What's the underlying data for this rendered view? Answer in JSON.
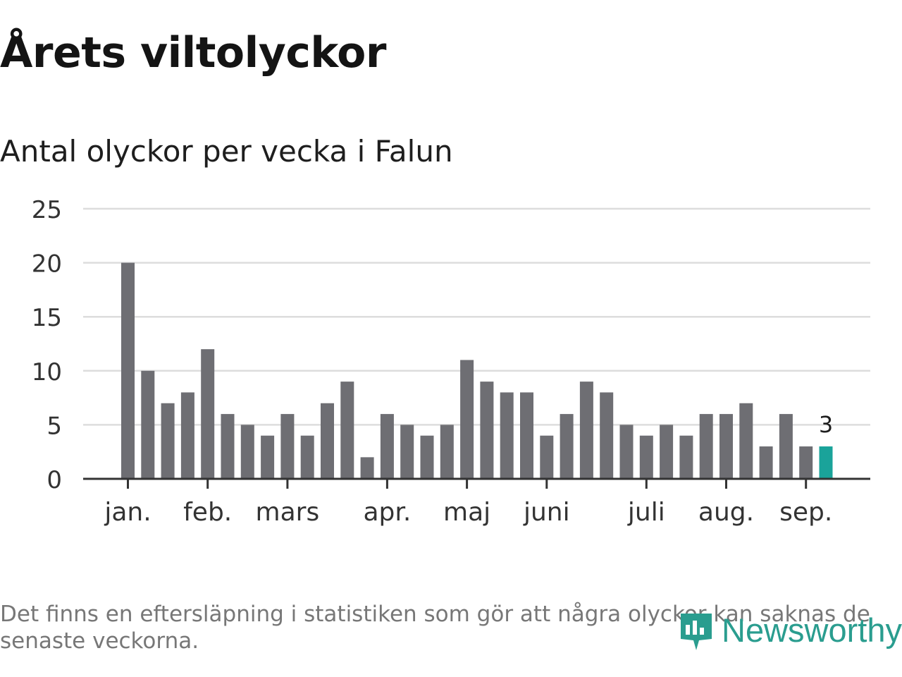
{
  "title": "Årets viltolyckor",
  "subtitle": "Antal olyckor per vecka i Falun",
  "footnote": "Det finns en eftersläpning i statistiken som gör att några olyckor kan saknas de senaste veckorna.",
  "brand": {
    "name": "Newsworthy",
    "icon": "newsworthy-logo-icon"
  },
  "colors": {
    "bar": "#6e6e73",
    "highlight": "#1aa39a",
    "grid": "#dddddd",
    "axis": "#333333"
  },
  "chart_data": {
    "type": "bar",
    "title": "Antal olyckor per vecka i Falun",
    "xlabel": "",
    "ylabel": "",
    "ylim": [
      0,
      25
    ],
    "yticks": [
      0,
      5,
      10,
      15,
      20,
      25
    ],
    "grid": true,
    "values": [
      20,
      10,
      7,
      8,
      12,
      6,
      5,
      4,
      6,
      4,
      7,
      9,
      2,
      6,
      5,
      4,
      5,
      11,
      9,
      8,
      8,
      4,
      6,
      9,
      8,
      5,
      4,
      5,
      4,
      6,
      6,
      7,
      3,
      6,
      3,
      3
    ],
    "highlight_index": 35,
    "highlight_label": "3",
    "month_labels": [
      {
        "label": "jan.",
        "bar_index": 0
      },
      {
        "label": "feb.",
        "bar_index": 4
      },
      {
        "label": "mars",
        "bar_index": 8
      },
      {
        "label": "apr.",
        "bar_index": 13
      },
      {
        "label": "maj",
        "bar_index": 17
      },
      {
        "label": "juni",
        "bar_index": 21
      },
      {
        "label": "juli",
        "bar_index": 26
      },
      {
        "label": "aug.",
        "bar_index": 30
      },
      {
        "label": "sep.",
        "bar_index": 34
      }
    ]
  }
}
